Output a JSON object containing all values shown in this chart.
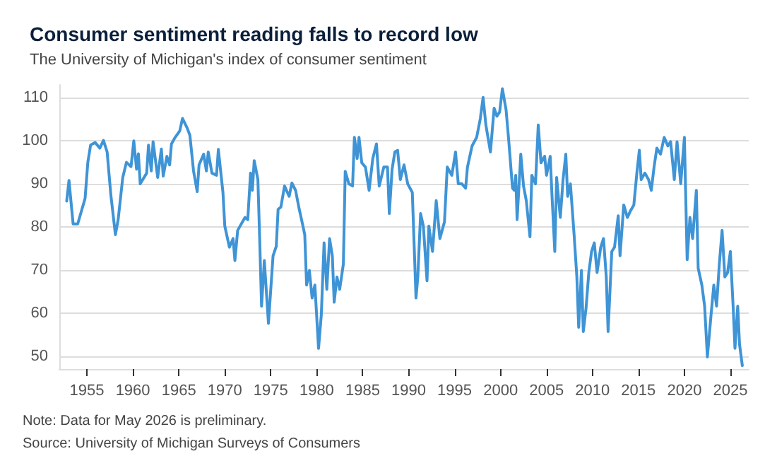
{
  "chart_data": {
    "type": "line",
    "title": "Consumer sentiment reading falls to record low",
    "subtitle": "The University of Michigan's index of consumer sentiment",
    "annotations": [
      "Note: Data for May 2026 is preliminary.",
      "Source: University of Michigan Surveys of Consumers"
    ],
    "xlim": [
      1952,
      2027
    ],
    "xticks": [
      1955,
      1960,
      1965,
      1970,
      1975,
      1980,
      1985,
      1990,
      1995,
      2000,
      2005,
      2010,
      2015,
      2020,
      2025
    ],
    "ylim": [
      47,
      113
    ],
    "yticks": [
      50,
      60,
      70,
      80,
      90,
      100,
      110
    ],
    "grid": "y",
    "marker": "none",
    "line_style": "solid",
    "series": [
      {
        "color": "#3f94d6",
        "x": [
          1952.8,
          1953.05,
          1953.5,
          1954.0,
          1954.8,
          1955.1,
          1955.4,
          1955.9,
          1956.4,
          1956.8,
          1957.2,
          1957.6,
          1958.1,
          1958.4,
          1958.9,
          1959.3,
          1959.8,
          1960.1,
          1960.4,
          1960.6,
          1960.8,
          1961.5,
          1961.7,
          1962.0,
          1962.2,
          1962.7,
          1963.1,
          1963.3,
          1963.7,
          1964.0,
          1964.2,
          1964.6,
          1965.1,
          1965.4,
          1965.9,
          1966.2,
          1966.6,
          1967.0,
          1967.2,
          1967.7,
          1968.0,
          1968.2,
          1968.6,
          1969.1,
          1969.3,
          1969.8,
          1970.0,
          1970.5,
          1970.9,
          1971.1,
          1971.4,
          1972.2,
          1972.5,
          1972.8,
          1973.0,
          1973.2,
          1973.6,
          1973.8,
          1974.0,
          1974.3,
          1974.75,
          1975.25,
          1975.6,
          1975.8,
          1976.1,
          1976.5,
          1977.0,
          1977.3,
          1977.7,
          1978.1,
          1978.3,
          1978.7,
          1978.9,
          1979.2,
          1979.5,
          1979.8,
          1980.2,
          1980.5,
          1980.8,
          1981.1,
          1981.4,
          1981.7,
          1981.9,
          1982.2,
          1982.5,
          1982.9,
          1983.1,
          1983.5,
          1983.9,
          1984.1,
          1984.4,
          1984.6,
          1984.9,
          1985.3,
          1985.7,
          1986.1,
          1986.5,
          1986.8,
          1987.3,
          1987.7,
          1987.9,
          1988.2,
          1988.5,
          1988.8,
          1989.1,
          1989.5,
          1989.9,
          1990.4,
          1990.8,
          1991.0,
          1991.3,
          1991.6,
          1992.0,
          1992.2,
          1992.6,
          1993.0,
          1993.4,
          1993.9,
          1994.2,
          1994.7,
          1995.1,
          1995.4,
          1995.8,
          1996.2,
          1996.4,
          1996.9,
          1997.4,
          1997.8,
          1998.1,
          1998.4,
          1998.9,
          1999.3,
          1999.6,
          1999.9,
          2000.2,
          2000.6,
          2000.9,
          2001.3,
          2001.5,
          2001.65,
          2001.8,
          2002.2,
          2002.5,
          2002.8,
          2003.2,
          2003.4,
          2003.8,
          2004.1,
          2004.4,
          2004.8,
          2005.0,
          2005.4,
          2005.6,
          2005.9,
          2006.1,
          2006.5,
          2006.8,
          2007.1,
          2007.3,
          2007.6,
          2008.0,
          2008.3,
          2008.5,
          2008.8,
          2009.0,
          2009.3,
          2009.6,
          2009.9,
          2010.2,
          2010.5,
          2010.9,
          2011.2,
          2011.5,
          2011.7,
          2012.1,
          2012.4,
          2012.8,
          2013.0,
          2013.4,
          2013.8,
          2014.1,
          2014.5,
          2014.85,
          2015.1,
          2015.3,
          2015.7,
          2016.1,
          2016.4,
          2016.7,
          2017.0,
          2017.4,
          2017.8,
          2018.2,
          2018.5,
          2018.9,
          2019.2,
          2019.6,
          2020.0,
          2020.3,
          2020.6,
          2020.9,
          2021.3,
          2021.5,
          2021.9,
          2022.2,
          2022.5,
          2022.9,
          2023.2,
          2023.5,
          2023.8,
          2024.1,
          2024.4,
          2024.7,
          2025.0,
          2025.3,
          2025.5,
          2025.8,
          2026.0,
          2026.3
        ],
        "values": [
          86,
          90.8,
          80.7,
          80.7,
          86.6,
          95,
          99,
          99.6,
          98.3,
          100.1,
          97.4,
          87.5,
          78.2,
          81.7,
          91.5,
          95,
          94,
          100,
          93.4,
          97,
          90,
          92.5,
          99,
          93,
          99.8,
          91.5,
          98.1,
          91.8,
          96.4,
          94.4,
          99.3,
          100.8,
          102.3,
          105.2,
          103,
          101.3,
          93,
          88.2,
          94.4,
          96.9,
          93,
          97.4,
          92.5,
          92,
          98,
          88,
          80.2,
          75.3,
          77.3,
          72.2,
          79.2,
          82.2,
          81.7,
          92.5,
          88.5,
          95.4,
          91,
          76.8,
          61.6,
          72.2,
          57.6,
          73.3,
          75.5,
          84.1,
          84.6,
          89.5,
          87.1,
          90.2,
          88.5,
          84.1,
          82.2,
          78.2,
          66.5,
          69.9,
          63.5,
          66.5,
          51.8,
          59.6,
          76.3,
          65.5,
          77.3,
          73.3,
          62.5,
          68.4,
          65.5,
          71.4,
          92.9,
          90,
          89.5,
          100.8,
          95.9,
          100.8,
          94.9,
          93.9,
          88.5,
          95.9,
          99.3,
          89.5,
          93.9,
          93.9,
          83.1,
          93.4,
          97.4,
          97.8,
          91,
          94.4,
          90,
          88,
          63.5,
          68.4,
          83.1,
          80.2,
          67.5,
          80.2,
          74.3,
          86.1,
          77.3,
          81.2,
          93.9,
          92,
          97.4,
          90,
          90,
          89,
          93.9,
          98.8,
          100.8,
          105.2,
          110.1,
          103.7,
          97.4,
          107.6,
          105.7,
          106.7,
          112.1,
          107.2,
          99.8,
          89,
          88.5,
          92,
          81.7,
          96.9,
          89.5,
          86.1,
          77.7,
          92,
          90,
          103.7,
          94.9,
          96.4,
          92,
          96.4,
          87.1,
          74.3,
          91.5,
          82.2,
          91,
          96.9,
          87.1,
          90,
          78.2,
          68.4,
          56.7,
          69.9,
          55.7,
          61.1,
          69.4,
          74.3,
          76.3,
          69.4,
          75.3,
          77.3,
          68.4,
          55.7,
          74.3,
          75.3,
          82.6,
          73.3,
          85.1,
          82.2,
          83.6,
          85.1,
          93,
          97.8,
          91,
          92.5,
          91,
          88.5,
          93.9,
          98.3,
          96.9,
          100.8,
          98.8,
          99.8,
          91,
          99.8,
          90,
          100.8,
          72.4,
          82.2,
          77.3,
          88.5,
          70.4,
          66.5,
          61.6,
          49.8,
          59.6,
          66.5,
          61.6,
          71.4,
          79.2,
          68.4,
          69.4,
          74.3,
          61.6,
          51.8,
          61.6,
          52.7,
          47.8
        ]
      }
    ]
  }
}
